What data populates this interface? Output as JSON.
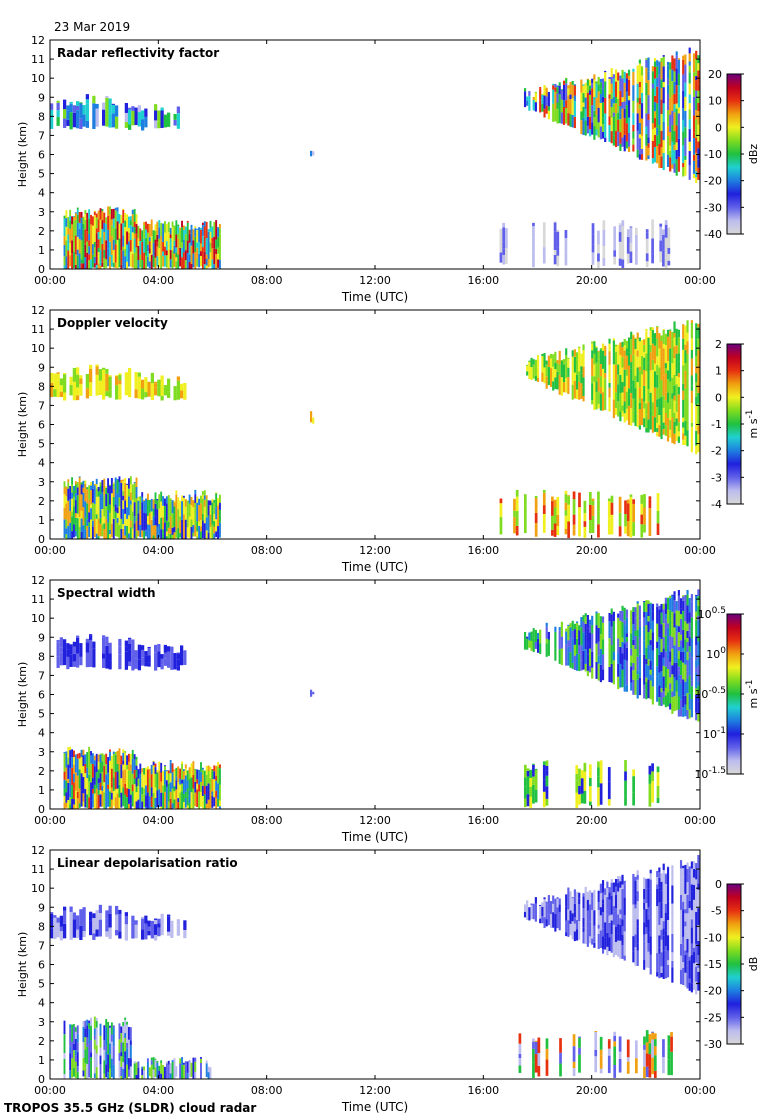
{
  "date": "23 Mar 2019",
  "footer": "TROPOS 35.5 GHz (SLDR) cloud radar",
  "colors": {
    "scale": [
      "#d8d8d8",
      "#bcbcee",
      "#6060ea",
      "#2020dd",
      "#1e7fe0",
      "#20d0d0",
      "#20c040",
      "#80dc20",
      "#f0f020",
      "#f0a010",
      "#e63010",
      "#c00020",
      "#6b0080"
    ]
  },
  "chart_data": [
    {
      "type": "heatmap",
      "title": "Radar reflectivity factor",
      "xlabel": "Time (UTC)",
      "ylabel": "Height (km)",
      "xticks": [
        "00:00",
        "04:00",
        "08:00",
        "12:00",
        "16:00",
        "20:00",
        "00:00"
      ],
      "xlim": [
        0,
        24
      ],
      "ylim": [
        0,
        12
      ],
      "yticks": [
        "0",
        "1",
        "2",
        "3",
        "4",
        "5",
        "6",
        "7",
        "8",
        "9",
        "10",
        "11",
        "12"
      ],
      "colorbar": {
        "unit": "dBz",
        "range": [
          -40,
          20
        ],
        "ticks": [
          "20",
          "10",
          "0",
          "-10",
          "-20",
          "-30",
          "-40"
        ]
      }
    },
    {
      "type": "heatmap",
      "title": "Doppler velocity",
      "xlabel": "Time (UTC)",
      "ylabel": "Height (km)",
      "xticks": [
        "00:00",
        "04:00",
        "08:00",
        "12:00",
        "16:00",
        "20:00",
        "00:00"
      ],
      "xlim": [
        0,
        24
      ],
      "ylim": [
        0,
        12
      ],
      "yticks": [
        "0",
        "1",
        "2",
        "3",
        "4",
        "5",
        "6",
        "7",
        "8",
        "9",
        "10",
        "11",
        "12"
      ],
      "colorbar": {
        "unit": "m s",
        "unit_exp": "-1",
        "range": [
          -4,
          2
        ],
        "ticks": [
          "2",
          "1",
          "0",
          "-1",
          "-2",
          "-3",
          "-4"
        ]
      }
    },
    {
      "type": "heatmap",
      "title": "Spectral width",
      "xlabel": "Time (UTC)",
      "ylabel": "Height (km)",
      "xticks": [
        "00:00",
        "04:00",
        "08:00",
        "12:00",
        "16:00",
        "20:00",
        "00:00"
      ],
      "xlim": [
        0,
        24
      ],
      "ylim": [
        0,
        12
      ],
      "yticks": [
        "0",
        "1",
        "2",
        "3",
        "4",
        "5",
        "6",
        "7",
        "8",
        "9",
        "10",
        "11",
        "12"
      ],
      "colorbar": {
        "unit": "m s",
        "unit_exp": "-1",
        "log": true,
        "range": [
          -1.5,
          0.5
        ],
        "ticks": [
          {
            "base": "10",
            "exp": "0.5"
          },
          {
            "base": "10",
            "exp": "0"
          },
          {
            "base": "10",
            "exp": "-0.5"
          },
          {
            "base": "10",
            "exp": "-1"
          },
          {
            "base": "10",
            "exp": "-1.5"
          }
        ]
      }
    },
    {
      "type": "heatmap",
      "title": "Linear depolarisation ratio",
      "xlabel": "Time (UTC)",
      "ylabel": "Height (km)",
      "xticks": [
        "00:00",
        "04:00",
        "08:00",
        "12:00",
        "16:00",
        "20:00",
        "00:00"
      ],
      "xlim": [
        0,
        24
      ],
      "ylim": [
        0,
        12
      ],
      "yticks": [
        "0",
        "1",
        "2",
        "3",
        "4",
        "5",
        "6",
        "7",
        "8",
        "9",
        "10",
        "11",
        "12"
      ],
      "colorbar": {
        "unit": "dB",
        "range": [
          -30,
          0
        ],
        "ticks": [
          "0",
          "-5",
          "-10",
          "-15",
          "-20",
          "-25",
          "-30"
        ]
      }
    }
  ]
}
